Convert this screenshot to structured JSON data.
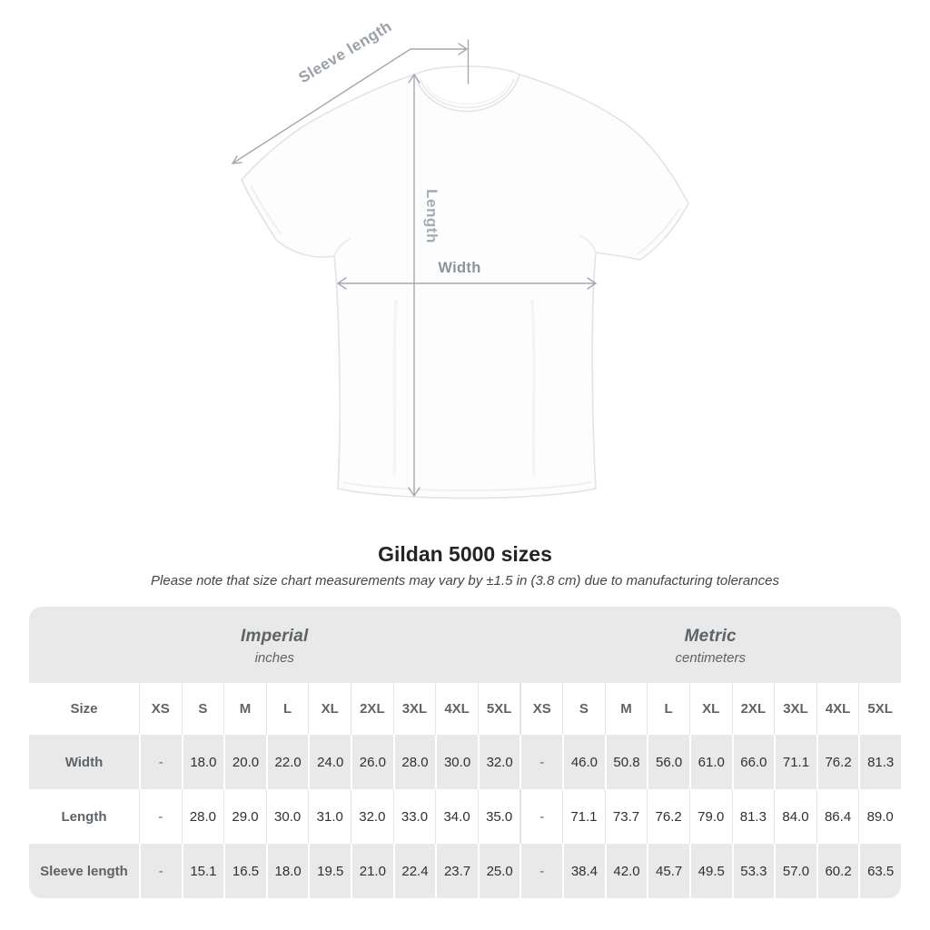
{
  "page": {
    "title": "Gildan 5000 sizes",
    "subtitle": "Please note that size chart measurements may vary by ±1.5 in (3.8 cm) due to manufacturing tolerances"
  },
  "diagram": {
    "sleeve_label": "Sleeve length",
    "length_label": "Length",
    "width_label": "Width"
  },
  "table": {
    "size_label": "Size",
    "sizes": [
      "XS",
      "S",
      "M",
      "L",
      "XL",
      "2XL",
      "3XL",
      "4XL",
      "5XL"
    ],
    "groups": [
      {
        "name": "Imperial",
        "unit": "inches"
      },
      {
        "name": "Metric",
        "unit": "centimeters"
      }
    ],
    "rows": [
      {
        "label": "Width",
        "imperial": [
          "-",
          "18.0",
          "20.0",
          "22.0",
          "24.0",
          "26.0",
          "28.0",
          "30.0",
          "32.0"
        ],
        "metric": [
          "-",
          "46.0",
          "50.8",
          "56.0",
          "61.0",
          "66.0",
          "71.1",
          "76.2",
          "81.3"
        ]
      },
      {
        "label": "Length",
        "imperial": [
          "-",
          "28.0",
          "29.0",
          "30.0",
          "31.0",
          "32.0",
          "33.0",
          "34.0",
          "35.0"
        ],
        "metric": [
          "-",
          "71.1",
          "73.7",
          "76.2",
          "79.0",
          "81.3",
          "84.0",
          "86.4",
          "89.0"
        ]
      },
      {
        "label": "Sleeve length",
        "imperial": [
          "-",
          "15.1",
          "16.5",
          "18.0",
          "19.5",
          "21.0",
          "22.4",
          "23.7",
          "25.0"
        ],
        "metric": [
          "-",
          "38.4",
          "42.0",
          "45.7",
          "49.5",
          "53.3",
          "57.0",
          "60.2",
          "63.5"
        ]
      }
    ]
  },
  "colors": {
    "annotation_line": "#a3a9af",
    "annotation_text": "#979ea6",
    "band_gray": "#e9e9e9",
    "label_text": "#5d6367",
    "value_text": "#2e3133",
    "title_text": "#242424"
  },
  "chart_data": {
    "type": "table",
    "title": "Gildan 5000 sizes",
    "note": "Size chart measurements may vary by ±1.5 in (3.8 cm) due to manufacturing tolerances",
    "column_groups": [
      "Imperial (inches)",
      "Metric (centimeters)"
    ],
    "sizes": [
      "XS",
      "S",
      "M",
      "L",
      "XL",
      "2XL",
      "3XL",
      "4XL",
      "5XL"
    ],
    "measurements": [
      {
        "label": "Width",
        "imperial_inches": [
          null,
          18.0,
          20.0,
          22.0,
          24.0,
          26.0,
          28.0,
          30.0,
          32.0
        ],
        "metric_cm": [
          null,
          46.0,
          50.8,
          56.0,
          61.0,
          66.0,
          71.1,
          76.2,
          81.3
        ]
      },
      {
        "label": "Length",
        "imperial_inches": [
          null,
          28.0,
          29.0,
          30.0,
          31.0,
          32.0,
          33.0,
          34.0,
          35.0
        ],
        "metric_cm": [
          null,
          71.1,
          73.7,
          76.2,
          79.0,
          81.3,
          84.0,
          86.4,
          89.0
        ]
      },
      {
        "label": "Sleeve length",
        "imperial_inches": [
          null,
          15.1,
          16.5,
          18.0,
          19.5,
          21.0,
          22.4,
          23.7,
          25.0
        ],
        "metric_cm": [
          null,
          38.4,
          42.0,
          45.7,
          49.5,
          53.3,
          57.0,
          60.2,
          63.5
        ]
      }
    ]
  }
}
